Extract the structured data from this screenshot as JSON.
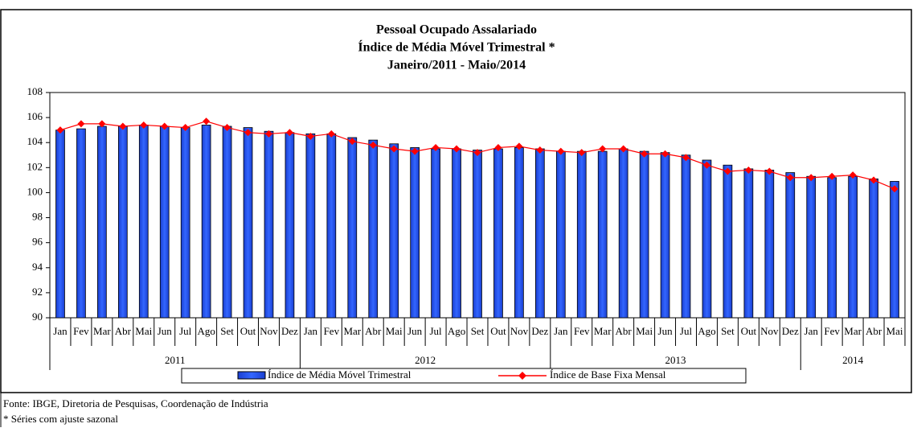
{
  "chart_data": {
    "type": "bar-line",
    "title": [
      "Pessoal Ocupado Assalariado",
      "Índice de Média Móvel Trimestral *",
      "Janeiro/2011 - Maio/2014"
    ],
    "category_groups": [
      {
        "name": "2011",
        "categories": [
          "Jan",
          "Fev",
          "Mar",
          "Abr",
          "Mai",
          "Jun",
          "Jul",
          "Ago",
          "Set",
          "Out",
          "Nov",
          "Dez"
        ]
      },
      {
        "name": "2012",
        "categories": [
          "Jan",
          "Fev",
          "Mar",
          "Abr",
          "Mai",
          "Jun",
          "Jul",
          "Ago",
          "Set",
          "Out",
          "Nov",
          "Dez"
        ]
      },
      {
        "name": "2013",
        "categories": [
          "Jan",
          "Fev",
          "Mar",
          "Abr",
          "Mai",
          "Jun",
          "Jul",
          "Ago",
          "Set",
          "Out",
          "Nov",
          "Dez"
        ]
      },
      {
        "name": "2014",
        "categories": [
          "Jan",
          "Fev",
          "Mar",
          "Abr",
          "Mai"
        ]
      }
    ],
    "series": [
      {
        "name": "Índice de Média Móvel Trimestral",
        "type": "bar",
        "color": "#3366ff",
        "values": [
          105.0,
          105.1,
          105.3,
          105.3,
          105.4,
          105.3,
          105.2,
          105.4,
          105.3,
          105.2,
          104.9,
          104.8,
          104.7,
          104.7,
          104.4,
          104.2,
          103.9,
          103.6,
          103.5,
          103.5,
          103.4,
          103.5,
          103.6,
          103.5,
          103.3,
          103.3,
          103.3,
          103.5,
          103.3,
          103.2,
          103.0,
          102.6,
          102.2,
          101.9,
          101.8,
          101.6,
          101.3,
          101.2,
          101.3,
          101.1,
          100.9
        ]
      },
      {
        "name": "Índice de Base Fixa Mensal",
        "type": "line",
        "color": "#ff0000",
        "values": [
          105.0,
          105.5,
          105.5,
          105.3,
          105.4,
          105.3,
          105.2,
          105.7,
          105.2,
          104.8,
          104.7,
          104.8,
          104.5,
          104.7,
          104.1,
          103.8,
          103.5,
          103.3,
          103.6,
          103.5,
          103.2,
          103.6,
          103.7,
          103.4,
          103.3,
          103.2,
          103.5,
          103.5,
          103.1,
          103.1,
          102.8,
          102.2,
          101.7,
          101.8,
          101.7,
          101.2,
          101.2,
          101.3,
          101.4,
          101.0,
          100.3
        ]
      }
    ],
    "ylim": [
      90,
      108
    ],
    "yticks": [
      90,
      92,
      94,
      96,
      98,
      100,
      102,
      104,
      106,
      108
    ],
    "notes": [
      "Fonte: IBGE, Diretoria de Pesquisas, Coordenação de Indústria",
      "* Séries com ajuste sazonal"
    ]
  }
}
